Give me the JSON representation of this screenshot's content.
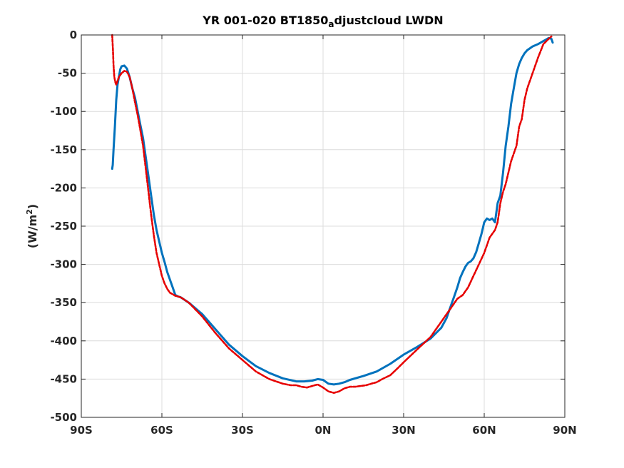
{
  "chart_data": {
    "type": "line",
    "title": {
      "main": "YR 001-020 BT1850",
      "subscript": "a",
      "rest": "djustcloud LWDN"
    },
    "ylabel": {
      "main": "(W/m",
      "superscript": "2",
      "close": ")"
    },
    "xlabel": "",
    "xlim": [
      -90,
      90
    ],
    "ylim": [
      -500,
      0
    ],
    "grid": true,
    "x_ticks": [
      {
        "value": -90,
        "label": "90S"
      },
      {
        "value": -60,
        "label": "60S"
      },
      {
        "value": -30,
        "label": "30S"
      },
      {
        "value": 0,
        "label": "0N"
      },
      {
        "value": 30,
        "label": "30N"
      },
      {
        "value": 60,
        "label": "60N"
      },
      {
        "value": 90,
        "label": "90N"
      }
    ],
    "y_ticks": [
      {
        "value": 0,
        "label": "0"
      },
      {
        "value": -50,
        "label": "-50"
      },
      {
        "value": -100,
        "label": "-100"
      },
      {
        "value": -150,
        "label": "-150"
      },
      {
        "value": -200,
        "label": "-200"
      },
      {
        "value": -250,
        "label": "-250"
      },
      {
        "value": -300,
        "label": "-300"
      },
      {
        "value": -350,
        "label": "-350"
      },
      {
        "value": -400,
        "label": "-400"
      },
      {
        "value": -450,
        "label": "-450"
      },
      {
        "value": -500,
        "label": "-500"
      }
    ],
    "series": [
      {
        "color": "#0072BD",
        "style": "solid",
        "x": [
          -78.5,
          -78.3,
          -78.0,
          -77.5,
          -77.0,
          -76.5,
          -76.0,
          -75.5,
          -75.0,
          -74.0,
          -73.0,
          -72.0,
          -71.0,
          -70.0,
          -69.0,
          -68.0,
          -67.0,
          -66.0,
          -65.0,
          -64.0,
          -63.0,
          -62.0,
          -61.0,
          -60.0,
          -59.0,
          -58.0,
          -57.0,
          -56.0,
          -55.0,
          -54.0,
          -53.0,
          -50.0,
          -45.0,
          -40.0,
          -35.0,
          -30.0,
          -25.0,
          -20.0,
          -15.0,
          -10.0,
          -7.0,
          -4.0,
          -2.0,
          0.0,
          2.0,
          4.0,
          6.0,
          8.0,
          10.0,
          15.0,
          20.0,
          25.0,
          30.0,
          35.0,
          40.0,
          42.0,
          44.0,
          46.0,
          47.0,
          48.0,
          49.0,
          50.0,
          51.0,
          52.0,
          53.0,
          54.0,
          55.0,
          56.0,
          57.0,
          58.0,
          59.0,
          60.0,
          61.0,
          62.0,
          63.0,
          64.0,
          65.0,
          66.0,
          67.0,
          68.0,
          69.0,
          70.0,
          71.0,
          72.0,
          73.0,
          74.0,
          75.0,
          76.0,
          78.0,
          80.0,
          82.0,
          84.0,
          85.0,
          85.5
        ],
        "y": [
          -175,
          -170,
          -150,
          -120,
          -85,
          -65,
          -55,
          -45,
          -41,
          -40,
          -44,
          -55,
          -70,
          -82,
          -100,
          -118,
          -135,
          -160,
          -185,
          -210,
          -235,
          -255,
          -270,
          -285,
          -297,
          -310,
          -320,
          -330,
          -340,
          -342,
          -343,
          -350,
          -365,
          -385,
          -405,
          -420,
          -433,
          -442,
          -449,
          -453,
          -453,
          -452,
          -450,
          -451,
          -456,
          -457,
          -456,
          -454,
          -451,
          -446,
          -440,
          -430,
          -418,
          -408,
          -397,
          -390,
          -383,
          -370,
          -360,
          -350,
          -340,
          -330,
          -318,
          -310,
          -303,
          -298,
          -296,
          -292,
          -284,
          -272,
          -260,
          -245,
          -240,
          -242,
          -240,
          -245,
          -220,
          -210,
          -180,
          -145,
          -120,
          -90,
          -70,
          -50,
          -38,
          -30,
          -24,
          -20,
          -15,
          -12,
          -8,
          -4,
          -5,
          -10
        ]
      },
      {
        "color": "#E60000",
        "style": "dashed",
        "x": [
          -78.5,
          -78.2,
          -78.0,
          -77.7,
          -77.3,
          -77.0,
          -76.5,
          -76.0,
          -75.0,
          -74.0,
          -73.0,
          -72.0,
          -71.0,
          -70.0,
          -69.0,
          -68.0,
          -67.0,
          -66.0,
          -65.0,
          -64.0,
          -63.0,
          -62.0,
          -61.0,
          -60.0,
          -59.0,
          -58.0,
          -57.0,
          -56.0,
          -55.0,
          -54.0,
          -53.0,
          -50.0,
          -45.0,
          -40.0,
          -35.0,
          -30.0,
          -25.0,
          -20.0,
          -15.0,
          -12.0,
          -10.0,
          -8.0,
          -6.0,
          -4.0,
          -2.0,
          0.0,
          2.0,
          4.0,
          6.0,
          8.0,
          10.0,
          12.0,
          14.0,
          16.0,
          18.0,
          20.0,
          22.0,
          25.0,
          28.0,
          30.0,
          33.0,
          36.0,
          40.0,
          43.0,
          46.0,
          48.0,
          50.0,
          52.0,
          54.0,
          56.0,
          58.0,
          60.0,
          62.0,
          63.0,
          64.0,
          65.0,
          66.0,
          67.0,
          68.0,
          70.0,
          72.0,
          73.0,
          74.0,
          75.0,
          76.0,
          78.0,
          80.0,
          82.0,
          84.0,
          85.0
        ],
        "y": [
          0,
          -20,
          -40,
          -55,
          -62,
          -65,
          -60,
          -55,
          -50,
          -47,
          -48,
          -55,
          -70,
          -88,
          -105,
          -125,
          -145,
          -175,
          -205,
          -235,
          -262,
          -285,
          -300,
          -315,
          -325,
          -332,
          -337,
          -339,
          -341,
          -342,
          -343,
          -350,
          -368,
          -390,
          -410,
          -425,
          -440,
          -450,
          -456,
          -458,
          -458,
          -460,
          -461,
          -459,
          -457,
          -461,
          -466,
          -468,
          -466,
          -462,
          -460,
          -460,
          -459,
          -458,
          -456,
          -454,
          -450,
          -445,
          -435,
          -428,
          -418,
          -408,
          -395,
          -380,
          -365,
          -355,
          -345,
          -340,
          -330,
          -315,
          -300,
          -285,
          -265,
          -260,
          -255,
          -245,
          -220,
          -205,
          -195,
          -165,
          -145,
          -120,
          -110,
          -85,
          -70,
          -50,
          -30,
          -12,
          -5,
          -2
        ]
      }
    ]
  }
}
